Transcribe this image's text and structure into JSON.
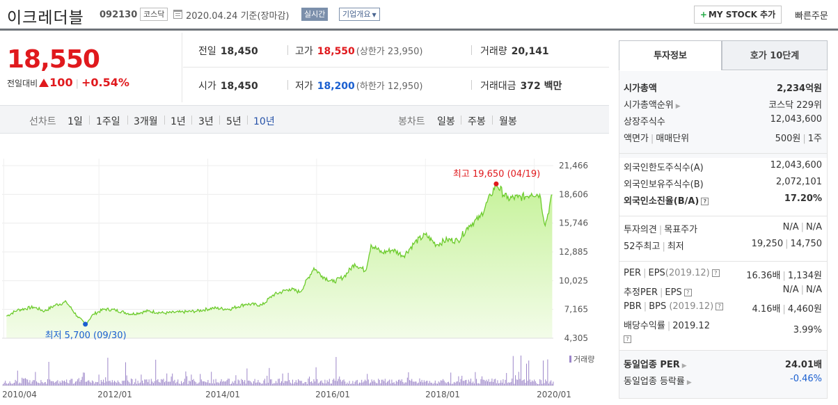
{
  "header": {
    "company_name": "이크레더블",
    "code": "092130",
    "market": "코스닥",
    "date_text": "2020.04.24 기준(장마감)",
    "realtime_label": "실시간",
    "overview_label": "기업개요",
    "mystock_label": "MY STOCK 추가",
    "quick_order_label": "빠른주문"
  },
  "price": {
    "current": "18,550",
    "change_label": "전일대비",
    "change_amount": "100",
    "change_percent": "+0.54%"
  },
  "quote": {
    "prev_close": {
      "label": "전일",
      "value": "18,450"
    },
    "high": {
      "label": "고가",
      "value": "18,550",
      "sub": "(상한가 23,950)"
    },
    "volume": {
      "label": "거래량",
      "value": "20,141"
    },
    "open": {
      "label": "시가",
      "value": "18,450"
    },
    "low": {
      "label": "저가",
      "value": "18,200",
      "sub": "(하한가 12,950)"
    },
    "trade_value": {
      "label": "거래대금",
      "value": "372 백만"
    }
  },
  "period_bar": {
    "line_label": "선차트",
    "line_items": [
      "1일",
      "1주일",
      "3개월",
      "1년",
      "3년",
      "5년",
      "10년"
    ],
    "active": "10년",
    "candle_label": "봉차트",
    "candle_items": [
      "일봉",
      "주봉",
      "월봉"
    ]
  },
  "chart_data": {
    "type": "area",
    "y_ticks": [
      "21,466",
      "18,606",
      "15,746",
      "12,885",
      "10,025",
      "7,165",
      "4,305"
    ],
    "ylim": [
      4305,
      21466
    ],
    "x_ticks": [
      "2010/04",
      "2012/01",
      "2014/01",
      "2016/01",
      "2018/01",
      "2020/01"
    ],
    "max_label": "최고 19,650 (04/19)",
    "min_label": "최저 5,700 (09/30)",
    "volume_legend": "거래량",
    "series": [
      {
        "x": 2010.3,
        "y": 6500
      },
      {
        "x": 2010.5,
        "y": 7100
      },
      {
        "x": 2010.8,
        "y": 7400
      },
      {
        "x": 2011.0,
        "y": 7000
      },
      {
        "x": 2011.2,
        "y": 7600
      },
      {
        "x": 2011.4,
        "y": 7900
      },
      {
        "x": 2011.6,
        "y": 6500
      },
      {
        "x": 2011.75,
        "y": 5700
      },
      {
        "x": 2011.9,
        "y": 6700
      },
      {
        "x": 2012.1,
        "y": 7200
      },
      {
        "x": 2012.3,
        "y": 7100
      },
      {
        "x": 2012.6,
        "y": 6700
      },
      {
        "x": 2012.9,
        "y": 7000
      },
      {
        "x": 2013.2,
        "y": 6800
      },
      {
        "x": 2013.5,
        "y": 6900
      },
      {
        "x": 2013.8,
        "y": 7000
      },
      {
        "x": 2014.1,
        "y": 7300
      },
      {
        "x": 2014.4,
        "y": 7200
      },
      {
        "x": 2014.7,
        "y": 7700
      },
      {
        "x": 2015.0,
        "y": 7600
      },
      {
        "x": 2015.2,
        "y": 8600
      },
      {
        "x": 2015.5,
        "y": 9200
      },
      {
        "x": 2015.7,
        "y": 8900
      },
      {
        "x": 2015.95,
        "y": 11300
      },
      {
        "x": 2016.1,
        "y": 10500
      },
      {
        "x": 2016.3,
        "y": 9900
      },
      {
        "x": 2016.5,
        "y": 10400
      },
      {
        "x": 2016.7,
        "y": 11700
      },
      {
        "x": 2016.9,
        "y": 11000
      },
      {
        "x": 2017.0,
        "y": 13600
      },
      {
        "x": 2017.2,
        "y": 12800
      },
      {
        "x": 2017.4,
        "y": 13100
      },
      {
        "x": 2017.6,
        "y": 12500
      },
      {
        "x": 2017.8,
        "y": 13800
      },
      {
        "x": 2018.0,
        "y": 14600
      },
      {
        "x": 2018.2,
        "y": 13600
      },
      {
        "x": 2018.4,
        "y": 14100
      },
      {
        "x": 2018.6,
        "y": 14000
      },
      {
        "x": 2018.8,
        "y": 15500
      },
      {
        "x": 2019.0,
        "y": 16300
      },
      {
        "x": 2019.2,
        "y": 18500
      },
      {
        "x": 2019.3,
        "y": 19650
      },
      {
        "x": 2019.5,
        "y": 18200
      },
      {
        "x": 2019.7,
        "y": 18300
      },
      {
        "x": 2019.85,
        "y": 18400
      },
      {
        "x": 2019.95,
        "y": 18700
      },
      {
        "x": 2020.1,
        "y": 18600
      },
      {
        "x": 2020.2,
        "y": 15500
      },
      {
        "x": 2020.33,
        "y": 18550
      }
    ]
  },
  "tabs": [
    {
      "label": "투자정보",
      "active": true
    },
    {
      "label": "호가 10단계",
      "active": false
    }
  ],
  "info": {
    "market_cap": {
      "label": "시가총액",
      "value": "2,234억원"
    },
    "cap_rank": {
      "label": "시가총액순위",
      "value": "코스닥 229위"
    },
    "shares": {
      "label": "상장주식수",
      "value": "12,043,600"
    },
    "par_unit": {
      "label": "액면가",
      "label2": "매매단위",
      "value": "500원",
      "value2": "1주"
    },
    "foreign_limit": {
      "label": "외국인한도주식수(A)",
      "value": "12,043,600"
    },
    "foreign_hold": {
      "label": "외국인보유주식수(B)",
      "value": "2,072,101"
    },
    "foreign_ratio": {
      "label": "외국인소진율(B/A)",
      "value": "17.20%"
    },
    "opinion": {
      "label": "투자의견",
      "label2": "목표주가",
      "value": "N/A",
      "value2": "N/A"
    },
    "week52": {
      "label": "52주최고",
      "label2": "최저",
      "value": "19,250",
      "value2": "14,750"
    },
    "per_eps": {
      "label": "PER",
      "label2": "EPS",
      "date": "(2019.12)",
      "value": "16.36배",
      "value2": "1,134원"
    },
    "est_per": {
      "label": "추정PER",
      "label2": "EPS",
      "value": "N/A",
      "value2": "N/A"
    },
    "pbr_bps": {
      "label": "PBR",
      "label2": "BPS",
      "date": "(2019.12)",
      "value": "4.16배",
      "value2": "4,460원"
    },
    "dividend": {
      "label": "배당수익률",
      "date": "2019.12",
      "value": "3.99%"
    },
    "industry_per": {
      "label": "동일업종 PER",
      "value": "24.01배"
    },
    "industry_rate": {
      "label": "동일업종 등락률",
      "value": "-0.46%"
    }
  }
}
